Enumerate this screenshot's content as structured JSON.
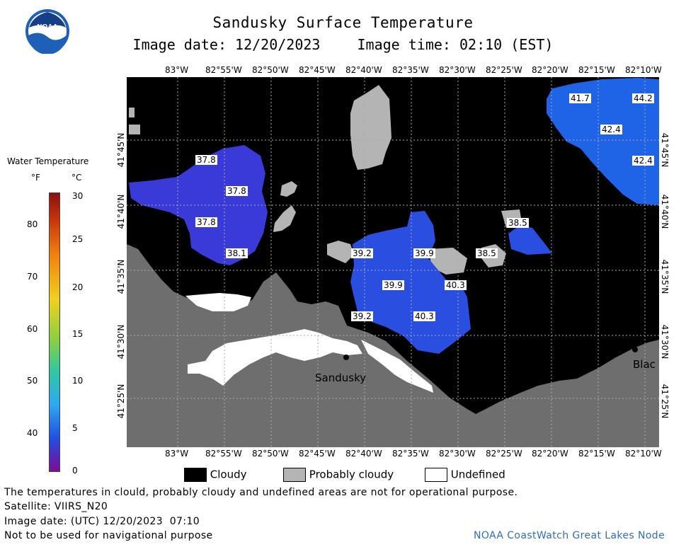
{
  "header": {
    "title": "Sandusky Surface Temperature",
    "image_date": "Image date: 12/20/2023",
    "image_time": "Image time: 02:10 (EST)"
  },
  "logo": {
    "text": "NOAA"
  },
  "legend": {
    "title": "Water Temperature",
    "unit_f": "°F",
    "unit_c": "°C",
    "f_ticks": [
      "80",
      "70",
      "60",
      "50",
      "40"
    ],
    "c_ticks": [
      "30",
      "25",
      "20",
      "15",
      "10",
      "5",
      "0"
    ]
  },
  "axes": {
    "lon_top": [
      "83°W",
      "82°55'W",
      "82°50'W",
      "82°45'W",
      "82°40'W",
      "82°35'W",
      "82°30'W",
      "82°25'W",
      "82°20'W",
      "82°15'W",
      "82°10'W"
    ],
    "lon_bottom": [
      "83°W",
      "82°55'W",
      "82°50'W",
      "82°45'W",
      "82°40'W",
      "82°35'W",
      "82°30'W",
      "82°25'W",
      "82°20'W",
      "82°15'W",
      "82°10'W"
    ],
    "lat_left": [
      "41°45'N",
      "41°40'N",
      "41°35'N",
      "41°30'N",
      "41°25'N"
    ],
    "lat_right": [
      "41°45'N",
      "41°40'N",
      "41°35'N",
      "41°30'N",
      "41°25'N"
    ]
  },
  "temperature_labels": [
    "37.8",
    "37.8",
    "37.8",
    "38.1",
    "39.2",
    "39.9",
    "39.9",
    "40.3",
    "40.3",
    "39.2",
    "38.5",
    "38.5",
    "41.7",
    "44.2",
    "42.4",
    "42.4"
  ],
  "place_labels": [
    "Sandusky",
    "Blac"
  ],
  "key": {
    "cloudy": "Cloudy",
    "probably_cloudy": "Probably cloudy",
    "undefined": "Undefined"
  },
  "footer": {
    "disclaimer": "The temperatures in clould, probably cloudy and undefined areas are not for operational purpose.",
    "satellite": "Satellite: VIIRS_N20",
    "utc_date": "Image date: (UTC) 12/20/2023  07:10",
    "nav": "Not to be used for navigational purpose",
    "credit": "NOAA CoastWatch Great Lakes Node"
  },
  "colors": {
    "cloud": "#000000",
    "probably_cloud": "#b4b4b4",
    "land": "#6e6e6e",
    "undefined": "#ffffff",
    "water_cold": "#3a3ad8",
    "water_warm": "#1f63e6",
    "credit_text": "#2f6fbf"
  }
}
